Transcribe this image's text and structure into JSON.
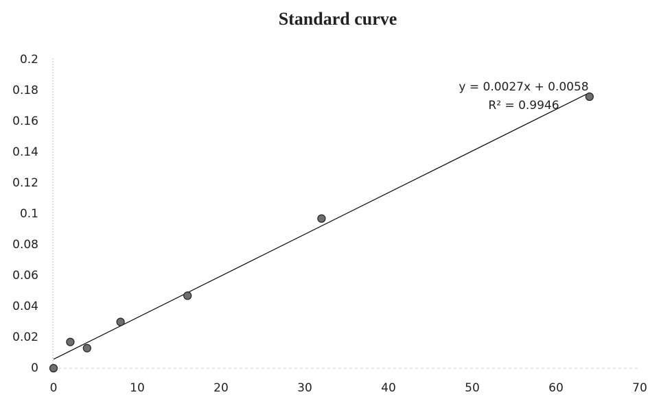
{
  "chart_data": {
    "type": "scatter",
    "title": "Standard curve",
    "x": [
      0,
      2,
      4,
      8,
      16,
      32,
      64
    ],
    "series": [
      {
        "color": "#6e6e6e",
        "values": [
          0,
          0.017,
          0.013,
          0.03,
          0.047,
          0.097,
          0.176
        ]
      }
    ],
    "xlim": [
      0,
      70
    ],
    "xticks": [
      0,
      10,
      20,
      30,
      40,
      50,
      60,
      70
    ],
    "ylim": [
      0,
      0.2
    ],
    "yticks": [
      0,
      0.02,
      0.04,
      0.06,
      0.08,
      0.1,
      0.12,
      0.14,
      0.16,
      0.18,
      0.2
    ],
    "trendline": {
      "slope": 0.0027,
      "intercept": 0.0058,
      "equation": "y = 0.0027x + 0.0058",
      "r_squared": "R² = 0.9946"
    }
  }
}
